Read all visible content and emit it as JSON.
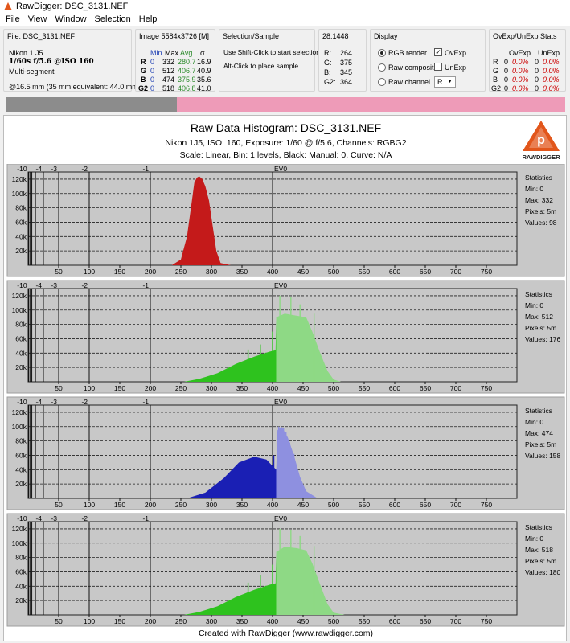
{
  "window": {
    "title": "RawDigger: DSC_3131.NEF"
  },
  "menu": [
    "File",
    "View",
    "Window",
    "Selection",
    "Help"
  ],
  "file_panel": {
    "label": "File: DSC_3131.NEF",
    "camera": "Nikon 1 J5",
    "exposure": "1/60s f/5.6 @ISO 160",
    "metering": "Multi-segment",
    "focal": "@16.5 mm (35 mm equivalent: 44.0 mm)"
  },
  "image_panel": {
    "label": "Image 5584x3726 [M]",
    "headers": [
      "Min",
      "Max",
      "Avg",
      "σ"
    ],
    "rows": [
      {
        "ch": "R",
        "min": "0",
        "max": "332",
        "avg": "280.7",
        "sd": "16.9"
      },
      {
        "ch": "G",
        "min": "0",
        "max": "512",
        "avg": "406.7",
        "sd": "40.9"
      },
      {
        "ch": "B",
        "min": "0",
        "max": "474",
        "avg": "375.9",
        "sd": "35.6"
      },
      {
        "ch": "G2",
        "min": "0",
        "max": "518",
        "avg": "406.8",
        "sd": "41.0"
      }
    ]
  },
  "selection_panel": {
    "label": "Selection/Sample",
    "hint1": "Use Shift-Click to start selection",
    "hint2": "Alt-Click to place sample"
  },
  "sample_panel": {
    "label": "28:1448",
    "rows": [
      {
        "ch": "R:",
        "val": "264"
      },
      {
        "ch": "G:",
        "val": "375"
      },
      {
        "ch": "B:",
        "val": "345"
      },
      {
        "ch": "G2:",
        "val": "364"
      }
    ]
  },
  "display_panel": {
    "label": "Display",
    "rgb_render": "RGB render",
    "raw_composite": "Raw composite",
    "raw_channel": "Raw channel",
    "ovexp": "OvExp",
    "unexp": "UnExp",
    "channel_value": "R",
    "ovexp_checked": true,
    "unexp_checked": false,
    "selected_mode": "RGB render"
  },
  "stats_panel": {
    "label": "OvExp/UnExp Stats",
    "headers": [
      "OvExp",
      "UnExp"
    ],
    "rows": [
      {
        "ch": "R",
        "n1": "0",
        "p1": "0.0%",
        "n2": "0",
        "p2": "0.0%"
      },
      {
        "ch": "G",
        "n1": "0",
        "p1": "0.0%",
        "n2": "0",
        "p2": "0.0%"
      },
      {
        "ch": "B",
        "n1": "0",
        "p1": "0.0%",
        "n2": "0",
        "p2": "0.0%"
      },
      {
        "ch": "G2",
        "n1": "0",
        "p1": "0.0%",
        "n2": "0",
        "p2": "0.0%"
      }
    ]
  },
  "histogram": {
    "title": "Raw Data Histogram: DSC_3131.NEF",
    "subtitle1": "Nikon 1J5, ISO: 160, Exposure: 1/60 @ f/5.6, Channels: RGBG2",
    "subtitle2": "Scale: Linear, Bin: 1 levels, Black: Manual: 0, Curve: N/A",
    "logo_text": "RAWDIGGER",
    "footer": "Created with RawDigger (www.rawdigger.com)",
    "ev_labels": [
      "-10",
      "-4",
      "-3",
      "-2",
      "-1",
      "EV0"
    ],
    "stats_title": "Statistics",
    "stats_min_label": "Min:",
    "stats_max_label": "Max:",
    "stats_pixels_label": "Pixels:",
    "stats_values_label": "Values:"
  },
  "chart_data": [
    {
      "type": "area",
      "channel": "R",
      "color": "#c41a1a",
      "xlim": [
        0,
        800
      ],
      "ylim": [
        0,
        130000
      ],
      "x_ticks": [
        50,
        100,
        150,
        200,
        250,
        300,
        350,
        400,
        450,
        500,
        550,
        600,
        650,
        700,
        750
      ],
      "y_ticks": [
        "20k",
        "40k",
        "60k",
        "80k",
        "100k",
        "120k"
      ],
      "ev_positions": [
        0.78,
        25,
        50,
        100,
        200,
        400
      ],
      "stats": {
        "min": "0",
        "max": "332",
        "pixels": "5m",
        "values": "98"
      },
      "points": [
        [
          235,
          0
        ],
        [
          250,
          8000
        ],
        [
          260,
          40000
        ],
        [
          268,
          90000
        ],
        [
          272,
          115000
        ],
        [
          276,
          122000
        ],
        [
          280,
          124000
        ],
        [
          285,
          120000
        ],
        [
          290,
          110000
        ],
        [
          296,
          90000
        ],
        [
          302,
          55000
        ],
        [
          308,
          20000
        ],
        [
          315,
          3000
        ],
        [
          332,
          0
        ]
      ]
    },
    {
      "type": "area",
      "channel": "G",
      "color": "#2ec21e",
      "light_color": "#8ed985",
      "xlim": [
        0,
        800
      ],
      "ylim": [
        0,
        130000
      ],
      "x_ticks": [
        50,
        100,
        150,
        200,
        250,
        300,
        350,
        400,
        450,
        500,
        550,
        600,
        650,
        700,
        750
      ],
      "y_ticks": [
        "20k",
        "40k",
        "60k",
        "80k",
        "100k",
        "120k"
      ],
      "ev_positions": [
        0.78,
        25,
        50,
        100,
        200,
        400
      ],
      "stats": {
        "min": "0",
        "max": "512",
        "pixels": "5m",
        "values": "176"
      },
      "points": [
        [
          255,
          0
        ],
        [
          280,
          4000
        ],
        [
          310,
          12000
        ],
        [
          340,
          25000
        ],
        [
          370,
          35000
        ],
        [
          395,
          42000
        ],
        [
          405,
          44000
        ],
        [
          406,
          90000
        ],
        [
          420,
          95000
        ],
        [
          440,
          92000
        ],
        [
          455,
          90000
        ],
        [
          465,
          70000
        ],
        [
          478,
          40000
        ],
        [
          490,
          15000
        ],
        [
          500,
          3000
        ],
        [
          512,
          0
        ]
      ],
      "spikes": [
        [
          360,
          45000
        ],
        [
          380,
          52000
        ],
        [
          400,
          70000
        ],
        [
          412,
          120000
        ],
        [
          430,
          118000
        ],
        [
          445,
          108000
        ],
        [
          468,
          95000
        ]
      ]
    },
    {
      "type": "area",
      "channel": "B",
      "color": "#1a1fb4",
      "light_color": "#8e90e0",
      "xlim": [
        0,
        800
      ],
      "ylim": [
        0,
        130000
      ],
      "x_ticks": [
        50,
        100,
        150,
        200,
        250,
        300,
        350,
        400,
        450,
        500,
        550,
        600,
        650,
        700,
        750
      ],
      "y_ticks": [
        "20k",
        "40k",
        "60k",
        "80k",
        "100k",
        "120k"
      ],
      "ev_positions": [
        0.78,
        25,
        50,
        100,
        200,
        400
      ],
      "stats": {
        "min": "0",
        "max": "474",
        "pixels": "5m",
        "values": "158"
      },
      "points": [
        [
          260,
          0
        ],
        [
          290,
          8000
        ],
        [
          320,
          28000
        ],
        [
          345,
          50000
        ],
        [
          370,
          58000
        ],
        [
          390,
          54000
        ],
        [
          400,
          45000
        ],
        [
          406,
          40000
        ],
        [
          408,
          95000
        ],
        [
          415,
          100000
        ],
        [
          425,
          85000
        ],
        [
          435,
          60000
        ],
        [
          445,
          30000
        ],
        [
          455,
          10000
        ],
        [
          474,
          0
        ]
      ],
      "spikes": [
        [
          402,
          60000
        ],
        [
          410,
          100000
        ],
        [
          418,
          98000
        ],
        [
          422,
          92000
        ],
        [
          428,
          78000
        ],
        [
          435,
          62000
        ]
      ]
    },
    {
      "type": "area",
      "channel": "G2",
      "color": "#2ec21e",
      "light_color": "#8ed985",
      "xlim": [
        0,
        800
      ],
      "ylim": [
        0,
        130000
      ],
      "x_ticks": [
        50,
        100,
        150,
        200,
        250,
        300,
        350,
        400,
        450,
        500,
        550,
        600,
        650,
        700,
        750
      ],
      "y_ticks": [
        "20k",
        "40k",
        "60k",
        "80k",
        "100k",
        "120k"
      ],
      "ev_positions": [
        0.78,
        25,
        50,
        100,
        200,
        400
      ],
      "stats": {
        "min": "0",
        "max": "518",
        "pixels": "5m",
        "values": "180"
      },
      "points": [
        [
          255,
          0
        ],
        [
          280,
          4000
        ],
        [
          310,
          12000
        ],
        [
          340,
          25000
        ],
        [
          370,
          35000
        ],
        [
          395,
          42000
        ],
        [
          405,
          44000
        ],
        [
          406,
          88000
        ],
        [
          420,
          95000
        ],
        [
          440,
          93000
        ],
        [
          455,
          90000
        ],
        [
          465,
          72000
        ],
        [
          478,
          42000
        ],
        [
          490,
          15000
        ],
        [
          500,
          3000
        ],
        [
          518,
          0
        ]
      ],
      "spikes": [
        [
          360,
          45000
        ],
        [
          380,
          55000
        ],
        [
          400,
          70000
        ],
        [
          412,
          120000
        ],
        [
          430,
          118000
        ],
        [
          445,
          110000
        ],
        [
          468,
          96000
        ]
      ]
    }
  ]
}
